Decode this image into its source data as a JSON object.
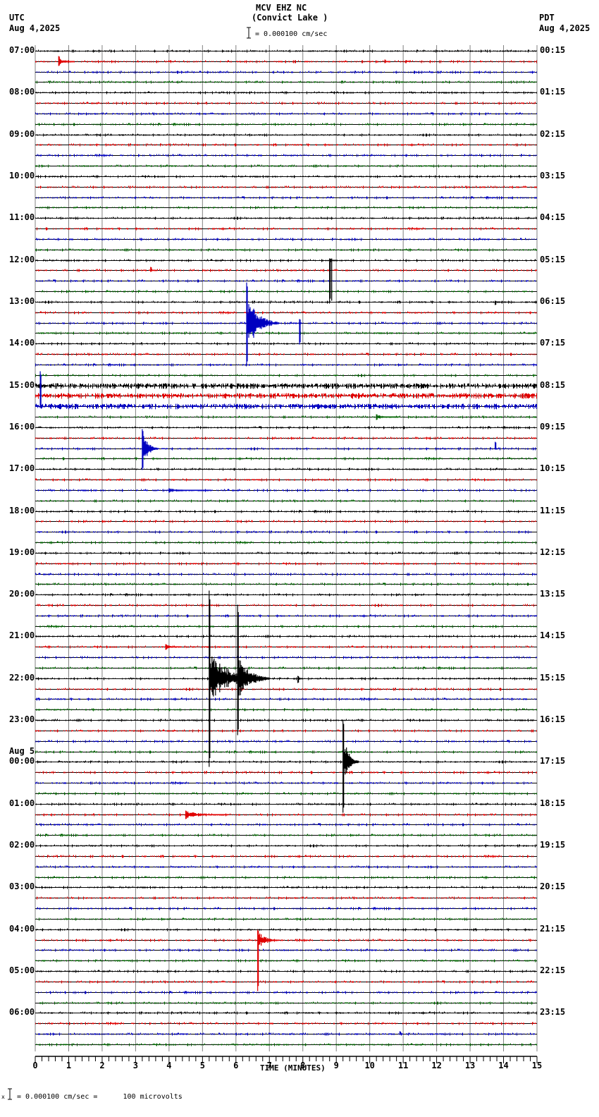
{
  "header": {
    "station": "MCV EHZ NC",
    "location": "(Convict Lake )",
    "scale": "= 0.000100 cm/sec",
    "left_tz": "UTC",
    "left_date": "Aug 4,2025",
    "right_tz": "PDT",
    "right_date": "Aug 4,2025"
  },
  "footer": {
    "scale_note": "= 0.000100 cm/sec =      100 microvolts",
    "marker": "x"
  },
  "colors": {
    "trace_cycle": [
      "#000000",
      "#e00000",
      "#0000c0",
      "#006400"
    ],
    "grid": "#808080",
    "baseline": "#000000"
  },
  "chart_data": {
    "type": "line",
    "title": "MCV EHZ NC (Convict Lake )",
    "xlabel": "TIME (MINUTES)",
    "ylabel": "",
    "x_ticks": [
      "0",
      "1",
      "2",
      "3",
      "4",
      "5",
      "6",
      "7",
      "8",
      "9",
      "10",
      "11",
      "12",
      "13",
      "14",
      "15"
    ],
    "xlim": [
      0,
      15
    ],
    "traces_per_hour": 4,
    "trace_minutes": 15,
    "left_labels": [
      {
        "row": 0,
        "text": "07:00"
      },
      {
        "row": 4,
        "text": "08:00"
      },
      {
        "row": 8,
        "text": "09:00"
      },
      {
        "row": 12,
        "text": "10:00"
      },
      {
        "row": 16,
        "text": "11:00"
      },
      {
        "row": 20,
        "text": "12:00"
      },
      {
        "row": 24,
        "text": "13:00"
      },
      {
        "row": 28,
        "text": "14:00"
      },
      {
        "row": 32,
        "text": "15:00"
      },
      {
        "row": 36,
        "text": "16:00"
      },
      {
        "row": 40,
        "text": "17:00"
      },
      {
        "row": 44,
        "text": "18:00"
      },
      {
        "row": 48,
        "text": "19:00"
      },
      {
        "row": 52,
        "text": "20:00"
      },
      {
        "row": 56,
        "text": "21:00"
      },
      {
        "row": 60,
        "text": "22:00"
      },
      {
        "row": 64,
        "text": "23:00"
      },
      {
        "row": 68,
        "text": "00:00",
        "date": "Aug 5"
      },
      {
        "row": 72,
        "text": "01:00"
      },
      {
        "row": 76,
        "text": "02:00"
      },
      {
        "row": 80,
        "text": "03:00"
      },
      {
        "row": 84,
        "text": "04:00"
      },
      {
        "row": 88,
        "text": "05:00"
      },
      {
        "row": 92,
        "text": "06:00"
      }
    ],
    "right_labels": [
      {
        "row": 0,
        "text": "00:15"
      },
      {
        "row": 4,
        "text": "01:15"
      },
      {
        "row": 8,
        "text": "02:15"
      },
      {
        "row": 12,
        "text": "03:15"
      },
      {
        "row": 16,
        "text": "04:15"
      },
      {
        "row": 20,
        "text": "05:15"
      },
      {
        "row": 24,
        "text": "06:15"
      },
      {
        "row": 28,
        "text": "07:15"
      },
      {
        "row": 32,
        "text": "08:15"
      },
      {
        "row": 36,
        "text": "09:15"
      },
      {
        "row": 40,
        "text": "10:15"
      },
      {
        "row": 44,
        "text": "11:15"
      },
      {
        "row": 48,
        "text": "12:15"
      },
      {
        "row": 52,
        "text": "13:15"
      },
      {
        "row": 56,
        "text": "14:15"
      },
      {
        "row": 60,
        "text": "15:15"
      },
      {
        "row": 64,
        "text": "16:15"
      },
      {
        "row": 68,
        "text": "17:15"
      },
      {
        "row": 72,
        "text": "18:15"
      },
      {
        "row": 76,
        "text": "19:15"
      },
      {
        "row": 80,
        "text": "20:15"
      },
      {
        "row": 84,
        "text": "21:15"
      },
      {
        "row": 88,
        "text": "22:15"
      },
      {
        "row": 92,
        "text": "23:15"
      }
    ],
    "rows": 96,
    "noisy_rows": [
      32,
      33,
      34
    ],
    "events": [
      {
        "row": 1,
        "minute": 0.7,
        "up": 8,
        "down": 6,
        "decay": 0.3
      },
      {
        "row": 1,
        "minute": 10.45,
        "up": 3,
        "down": 2,
        "decay": 0.1
      },
      {
        "row": 21,
        "minute": 3.45,
        "up": 5,
        "down": 2,
        "decay": 0.1
      },
      {
        "row": 20,
        "minute": 8.8,
        "up": 3,
        "down": 60,
        "decay": 0.15,
        "double": true
      },
      {
        "row": 24,
        "minute": 13.75,
        "up": 2,
        "down": 4,
        "decay": 0.1
      },
      {
        "row": 26,
        "minute": 6.32,
        "up": 58,
        "down": 60,
        "decay": 0.6,
        "span_up": 2,
        "span_down": 2
      },
      {
        "row": 26,
        "minute": 7.9,
        "up": 6,
        "down": 30,
        "decay": 0.05
      },
      {
        "row": 34,
        "minute": 0.15,
        "up": 50,
        "down": 2,
        "decay": 0.05
      },
      {
        "row": 35,
        "minute": 10.2,
        "up": 4,
        "down": 4,
        "decay": 0.4
      },
      {
        "row": 38,
        "minute": 3.2,
        "up": 28,
        "down": 30,
        "decay": 0.3
      },
      {
        "row": 38,
        "minute": 13.75,
        "up": 10,
        "down": 1,
        "decay": 0.05
      },
      {
        "row": 42,
        "minute": 4.0,
        "up": 3,
        "down": 3,
        "decay": 0.8
      },
      {
        "row": 57,
        "minute": 3.9,
        "up": 4,
        "down": 4,
        "decay": 0.3
      },
      {
        "row": 60,
        "minute": 5.2,
        "up": 125,
        "down": 125,
        "decay": 1.0,
        "span_up": 9,
        "span_down": 8
      },
      {
        "row": 60,
        "minute": 6.05,
        "up": 105,
        "down": 80,
        "decay": 0.6,
        "span_up": 7,
        "span_down": 6
      },
      {
        "row": 60,
        "minute": 7.85,
        "up": 4,
        "down": 6,
        "decay": 0.1
      },
      {
        "row": 68,
        "minute": 9.2,
        "up": 60,
        "down": 72,
        "decay": 0.3,
        "span_up": 4,
        "span_down": 5
      },
      {
        "row": 73,
        "minute": 4.5,
        "up": 6,
        "down": 6,
        "decay": 0.8
      },
      {
        "row": 85,
        "minute": 6.65,
        "up": 15,
        "down": 72,
        "decay": 0.4,
        "span_up": 1,
        "span_down": 5
      },
      {
        "row": 94,
        "minute": 10.9,
        "up": 4,
        "down": 1,
        "decay": 0.05
      }
    ]
  }
}
